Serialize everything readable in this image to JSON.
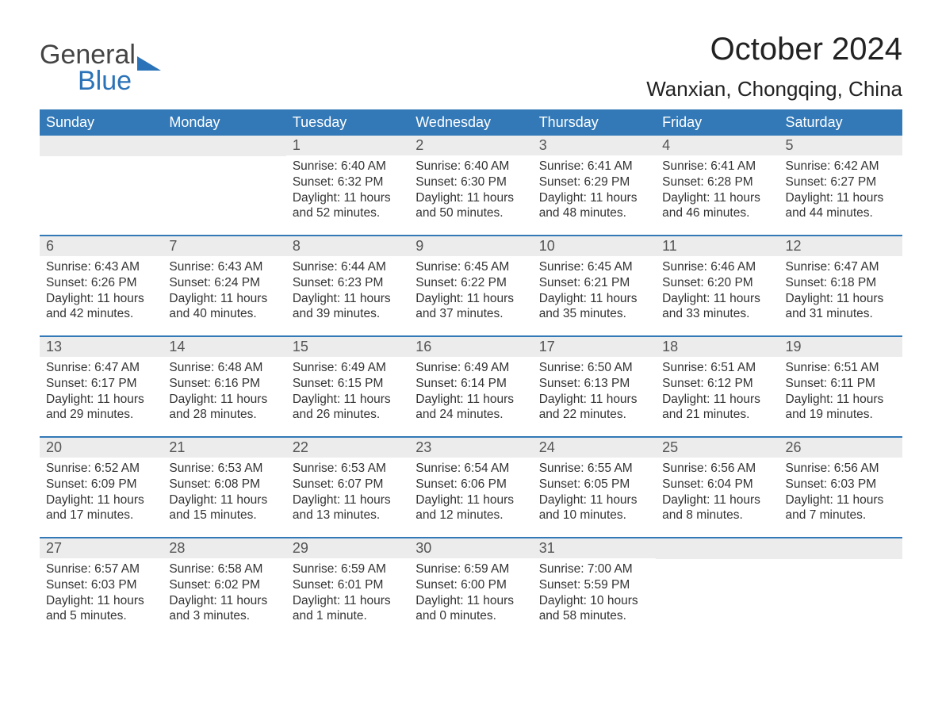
{
  "logo": {
    "text1": "General",
    "text2": "Blue"
  },
  "title": "October 2024",
  "location": "Wanxian, Chongqing, China",
  "colors": {
    "header_bg": "#3379b7",
    "header_text": "#ffffff",
    "daynum_bg": "#ececec",
    "week_border": "#3379b7",
    "logo_blue": "#2b73b8",
    "text": "#333333"
  },
  "weekdays": [
    "Sunday",
    "Monday",
    "Tuesday",
    "Wednesday",
    "Thursday",
    "Friday",
    "Saturday"
  ],
  "weeks": [
    [
      {
        "day": "",
        "sunrise": "",
        "sunset": "",
        "daylight": ""
      },
      {
        "day": "",
        "sunrise": "",
        "sunset": "",
        "daylight": ""
      },
      {
        "day": "1",
        "sunrise": "6:40 AM",
        "sunset": "6:32 PM",
        "daylight": "11 hours and 52 minutes."
      },
      {
        "day": "2",
        "sunrise": "6:40 AM",
        "sunset": "6:30 PM",
        "daylight": "11 hours and 50 minutes."
      },
      {
        "day": "3",
        "sunrise": "6:41 AM",
        "sunset": "6:29 PM",
        "daylight": "11 hours and 48 minutes."
      },
      {
        "day": "4",
        "sunrise": "6:41 AM",
        "sunset": "6:28 PM",
        "daylight": "11 hours and 46 minutes."
      },
      {
        "day": "5",
        "sunrise": "6:42 AM",
        "sunset": "6:27 PM",
        "daylight": "11 hours and 44 minutes."
      }
    ],
    [
      {
        "day": "6",
        "sunrise": "6:43 AM",
        "sunset": "6:26 PM",
        "daylight": "11 hours and 42 minutes."
      },
      {
        "day": "7",
        "sunrise": "6:43 AM",
        "sunset": "6:24 PM",
        "daylight": "11 hours and 40 minutes."
      },
      {
        "day": "8",
        "sunrise": "6:44 AM",
        "sunset": "6:23 PM",
        "daylight": "11 hours and 39 minutes."
      },
      {
        "day": "9",
        "sunrise": "6:45 AM",
        "sunset": "6:22 PM",
        "daylight": "11 hours and 37 minutes."
      },
      {
        "day": "10",
        "sunrise": "6:45 AM",
        "sunset": "6:21 PM",
        "daylight": "11 hours and 35 minutes."
      },
      {
        "day": "11",
        "sunrise": "6:46 AM",
        "sunset": "6:20 PM",
        "daylight": "11 hours and 33 minutes."
      },
      {
        "day": "12",
        "sunrise": "6:47 AM",
        "sunset": "6:18 PM",
        "daylight": "11 hours and 31 minutes."
      }
    ],
    [
      {
        "day": "13",
        "sunrise": "6:47 AM",
        "sunset": "6:17 PM",
        "daylight": "11 hours and 29 minutes."
      },
      {
        "day": "14",
        "sunrise": "6:48 AM",
        "sunset": "6:16 PM",
        "daylight": "11 hours and 28 minutes."
      },
      {
        "day": "15",
        "sunrise": "6:49 AM",
        "sunset": "6:15 PM",
        "daylight": "11 hours and 26 minutes."
      },
      {
        "day": "16",
        "sunrise": "6:49 AM",
        "sunset": "6:14 PM",
        "daylight": "11 hours and 24 minutes."
      },
      {
        "day": "17",
        "sunrise": "6:50 AM",
        "sunset": "6:13 PM",
        "daylight": "11 hours and 22 minutes."
      },
      {
        "day": "18",
        "sunrise": "6:51 AM",
        "sunset": "6:12 PM",
        "daylight": "11 hours and 21 minutes."
      },
      {
        "day": "19",
        "sunrise": "6:51 AM",
        "sunset": "6:11 PM",
        "daylight": "11 hours and 19 minutes."
      }
    ],
    [
      {
        "day": "20",
        "sunrise": "6:52 AM",
        "sunset": "6:09 PM",
        "daylight": "11 hours and 17 minutes."
      },
      {
        "day": "21",
        "sunrise": "6:53 AM",
        "sunset": "6:08 PM",
        "daylight": "11 hours and 15 minutes."
      },
      {
        "day": "22",
        "sunrise": "6:53 AM",
        "sunset": "6:07 PM",
        "daylight": "11 hours and 13 minutes."
      },
      {
        "day": "23",
        "sunrise": "6:54 AM",
        "sunset": "6:06 PM",
        "daylight": "11 hours and 12 minutes."
      },
      {
        "day": "24",
        "sunrise": "6:55 AM",
        "sunset": "6:05 PM",
        "daylight": "11 hours and 10 minutes."
      },
      {
        "day": "25",
        "sunrise": "6:56 AM",
        "sunset": "6:04 PM",
        "daylight": "11 hours and 8 minutes."
      },
      {
        "day": "26",
        "sunrise": "6:56 AM",
        "sunset": "6:03 PM",
        "daylight": "11 hours and 7 minutes."
      }
    ],
    [
      {
        "day": "27",
        "sunrise": "6:57 AM",
        "sunset": "6:03 PM",
        "daylight": "11 hours and 5 minutes."
      },
      {
        "day": "28",
        "sunrise": "6:58 AM",
        "sunset": "6:02 PM",
        "daylight": "11 hours and 3 minutes."
      },
      {
        "day": "29",
        "sunrise": "6:59 AM",
        "sunset": "6:01 PM",
        "daylight": "11 hours and 1 minute."
      },
      {
        "day": "30",
        "sunrise": "6:59 AM",
        "sunset": "6:00 PM",
        "daylight": "11 hours and 0 minutes."
      },
      {
        "day": "31",
        "sunrise": "7:00 AM",
        "sunset": "5:59 PM",
        "daylight": "10 hours and 58 minutes."
      },
      {
        "day": "",
        "sunrise": "",
        "sunset": "",
        "daylight": ""
      },
      {
        "day": "",
        "sunrise": "",
        "sunset": "",
        "daylight": ""
      }
    ]
  ],
  "labels": {
    "sunrise": "Sunrise: ",
    "sunset": "Sunset: ",
    "daylight": "Daylight: "
  }
}
